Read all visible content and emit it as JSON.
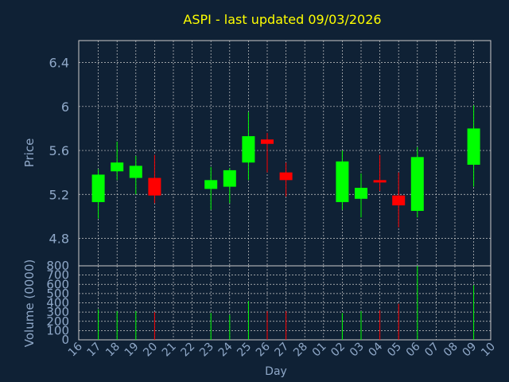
{
  "chart_data": {
    "type": "candlestick",
    "title": "ASPI - last updated 09/03/2026",
    "xlabel": "Day",
    "price_panel": {
      "ylabel": "Price",
      "ylim": [
        4.55,
        6.6
      ],
      "yticks": [
        "6.4",
        "6",
        "5.6",
        "5.2",
        "4.8"
      ],
      "ytick_values": [
        6.4,
        6.0,
        5.6,
        5.2,
        4.8
      ]
    },
    "volume_panel": {
      "ylabel": "Volume (0000)",
      "ylim": [
        0,
        800
      ],
      "yticks": [
        "800",
        "700",
        "600",
        "500",
        "400",
        "300",
        "200",
        "100",
        "0"
      ],
      "ytick_values": [
        800,
        700,
        600,
        500,
        400,
        300,
        200,
        100,
        0
      ]
    },
    "x_tick_labels": [
      "16",
      "17",
      "18",
      "19",
      "20",
      "21",
      "22",
      "23",
      "24",
      "25",
      "26",
      "27",
      "28",
      "01",
      "02",
      "03",
      "04",
      "05",
      "06",
      "07",
      "08",
      "09",
      "10"
    ],
    "colors": {
      "background": "#0f2135",
      "grid": "#cccccc",
      "axis": "#cccccc",
      "title": "#ffff00",
      "label": "#8fa8c8",
      "up": "#00ff00",
      "down": "#ff0000"
    },
    "candles": [
      {
        "day": "17",
        "open": 5.13,
        "high": 5.43,
        "low": 4.98,
        "close": 5.38,
        "volume": 330
      },
      {
        "day": "18",
        "open": 5.41,
        "high": 5.68,
        "low": 5.33,
        "close": 5.49,
        "volume": 310
      },
      {
        "day": "19",
        "open": 5.35,
        "high": 5.55,
        "low": 5.2,
        "close": 5.46,
        "volume": 310
      },
      {
        "day": "20",
        "open": 5.35,
        "high": 5.56,
        "low": 5.12,
        "close": 5.19,
        "volume": 300
      },
      {
        "day": "23",
        "open": 5.25,
        "high": 5.45,
        "low": 5.06,
        "close": 5.33,
        "volume": 290
      },
      {
        "day": "24",
        "open": 5.27,
        "high": 5.44,
        "low": 5.12,
        "close": 5.42,
        "volume": 270
      },
      {
        "day": "25",
        "open": 5.49,
        "high": 5.95,
        "low": 5.33,
        "close": 5.73,
        "volume": 420
      },
      {
        "day": "26",
        "open": 5.7,
        "high": 5.76,
        "low": 5.4,
        "close": 5.66,
        "volume": 310
      },
      {
        "day": "27",
        "open": 5.4,
        "high": 5.49,
        "low": 5.18,
        "close": 5.33,
        "volume": 310
      },
      {
        "day": "02",
        "open": 5.13,
        "high": 5.6,
        "low": 5.06,
        "close": 5.5,
        "volume": 290
      },
      {
        "day": "03",
        "open": 5.16,
        "high": 5.39,
        "low": 4.99,
        "close": 5.26,
        "volume": 310
      },
      {
        "day": "04",
        "open": 5.33,
        "high": 5.56,
        "low": 5.23,
        "close": 5.31,
        "volume": 320
      },
      {
        "day": "05",
        "open": 5.19,
        "high": 5.4,
        "low": 4.9,
        "close": 5.1,
        "volume": 390
      },
      {
        "day": "06",
        "open": 5.05,
        "high": 5.63,
        "low": 4.99,
        "close": 5.54,
        "volume": 800
      },
      {
        "day": "09",
        "open": 5.47,
        "high": 6.01,
        "low": 5.27,
        "close": 5.8,
        "volume": 590
      }
    ]
  }
}
